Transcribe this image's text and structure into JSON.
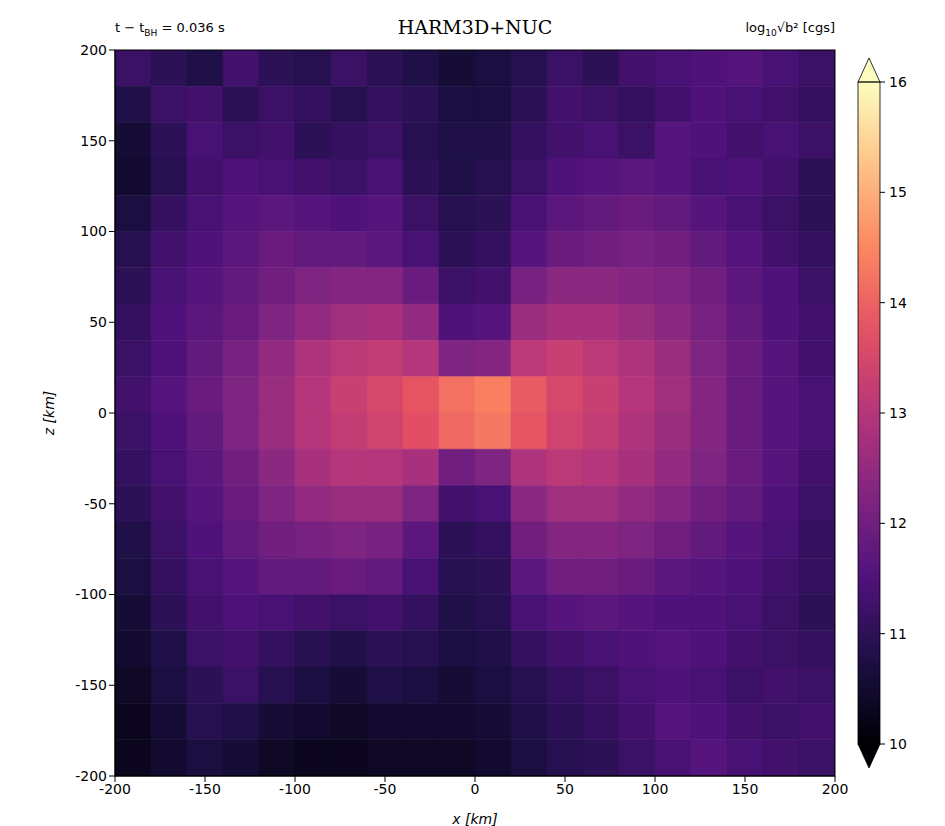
{
  "chart_data": {
    "type": "heatmap",
    "title": "HARM3D+NUC",
    "subtitle": [
      {
        "text": "t − t",
        "sub": false
      },
      {
        "text": "BH",
        "sub": true
      },
      {
        "text": " = 0.036 s",
        "sub": false
      }
    ],
    "colorbar_label": [
      {
        "text": "log",
        "sub": false
      },
      {
        "text": "10",
        "sub": true
      },
      {
        "text": "√b² [cgs]",
        "sub": false
      }
    ],
    "x_label": "x [km]",
    "y_label": "z [km]",
    "color": "magma",
    "xlim": [
      -200,
      200
    ],
    "ylim": [
      -200,
      200
    ],
    "xticks": [
      -200,
      -150,
      -100,
      -50,
      0,
      50,
      100,
      150,
      200
    ],
    "yticks": [
      -200,
      -150,
      -100,
      -50,
      0,
      50,
      100,
      150,
      200
    ],
    "colorbar_range": [
      10,
      16
    ],
    "colorbar_ticks": [
      10,
      11,
      12,
      13,
      14,
      15,
      16
    ],
    "x": [
      -190,
      -170,
      -150,
      -130,
      -110,
      -90,
      -70,
      -50,
      -30,
      -10,
      10,
      30,
      50,
      70,
      90,
      110,
      130,
      150,
      170,
      190
    ],
    "y": [
      190,
      170,
      150,
      130,
      110,
      90,
      70,
      50,
      30,
      10,
      -10,
      -30,
      -50,
      -70,
      -90,
      -110,
      -130,
      -150,
      -170,
      -190
    ],
    "cells": [
      [
        11.2,
        11.0,
        10.8,
        11.3,
        11.0,
        10.9,
        11.2,
        11.0,
        10.8,
        10.6,
        10.7,
        10.9,
        11.2,
        11.0,
        11.3,
        11.4,
        11.5,
        11.6,
        11.4,
        11.2
      ],
      [
        10.8,
        11.2,
        11.3,
        11.0,
        11.2,
        11.1,
        10.9,
        11.1,
        11.0,
        10.7,
        10.7,
        11.0,
        11.3,
        11.2,
        11.1,
        11.3,
        11.5,
        11.4,
        11.3,
        11.1
      ],
      [
        10.6,
        11.0,
        11.4,
        11.2,
        11.3,
        11.0,
        11.1,
        11.2,
        10.9,
        10.8,
        10.8,
        11.1,
        11.3,
        11.4,
        11.2,
        11.6,
        11.5,
        11.3,
        11.4,
        11.2
      ],
      [
        10.5,
        10.9,
        11.3,
        11.5,
        11.4,
        11.3,
        11.2,
        11.4,
        11.0,
        10.8,
        10.9,
        11.2,
        11.5,
        11.6,
        11.7,
        11.6,
        11.4,
        11.5,
        11.3,
        11.0
      ],
      [
        10.7,
        11.1,
        11.4,
        11.6,
        11.7,
        11.6,
        11.5,
        11.6,
        11.2,
        10.9,
        11.0,
        11.4,
        11.7,
        11.8,
        11.9,
        11.8,
        11.6,
        11.4,
        11.2,
        11.0
      ],
      [
        10.9,
        11.3,
        11.5,
        11.7,
        11.9,
        11.8,
        11.8,
        11.7,
        11.4,
        11.0,
        11.1,
        11.6,
        11.9,
        12.0,
        12.1,
        12.0,
        11.8,
        11.6,
        11.3,
        11.1
      ],
      [
        11.0,
        11.4,
        11.6,
        11.8,
        12.0,
        12.2,
        12.3,
        12.3,
        11.9,
        11.2,
        11.3,
        12.1,
        12.4,
        12.4,
        12.3,
        12.2,
        12.0,
        11.7,
        11.5,
        11.2
      ],
      [
        11.1,
        11.5,
        11.7,
        11.9,
        12.2,
        12.5,
        12.7,
        12.8,
        12.5,
        11.5,
        11.6,
        12.6,
        12.8,
        12.8,
        12.6,
        12.4,
        12.1,
        11.8,
        11.5,
        11.3
      ],
      [
        11.2,
        11.5,
        11.8,
        12.1,
        12.5,
        12.9,
        13.1,
        13.2,
        13.0,
        12.2,
        12.3,
        13.1,
        13.3,
        13.1,
        12.9,
        12.6,
        12.2,
        11.9,
        11.6,
        11.3
      ],
      [
        11.3,
        11.6,
        11.9,
        12.2,
        12.6,
        13.0,
        13.3,
        13.5,
        13.8,
        14.2,
        14.4,
        13.9,
        13.5,
        13.3,
        13.0,
        12.7,
        12.3,
        11.9,
        11.6,
        11.4
      ],
      [
        11.2,
        11.5,
        11.8,
        12.2,
        12.6,
        13.0,
        13.2,
        13.4,
        13.7,
        14.1,
        14.3,
        13.8,
        13.4,
        13.2,
        12.9,
        12.6,
        12.3,
        11.9,
        11.6,
        11.4
      ],
      [
        11.1,
        11.4,
        11.7,
        12.0,
        12.4,
        12.8,
        13.0,
        13.0,
        12.8,
        12.0,
        12.2,
        12.9,
        13.1,
        13.0,
        12.8,
        12.5,
        12.2,
        11.9,
        11.6,
        11.3
      ],
      [
        11.0,
        11.3,
        11.6,
        11.9,
        12.2,
        12.5,
        12.6,
        12.6,
        12.2,
        11.3,
        11.4,
        12.4,
        12.7,
        12.7,
        12.5,
        12.3,
        12.0,
        11.8,
        11.5,
        11.2
      ],
      [
        10.8,
        11.2,
        11.5,
        11.8,
        12.0,
        12.1,
        12.2,
        12.1,
        11.7,
        11.0,
        11.1,
        12.0,
        12.3,
        12.3,
        12.2,
        12.0,
        11.8,
        11.6,
        11.4,
        11.1
      ],
      [
        10.7,
        11.1,
        11.4,
        11.6,
        11.8,
        11.8,
        11.9,
        11.8,
        11.4,
        10.9,
        11.0,
        11.7,
        12.0,
        12.0,
        11.9,
        11.7,
        11.6,
        11.5,
        11.3,
        11.1
      ],
      [
        10.6,
        11.0,
        11.3,
        11.5,
        11.4,
        11.3,
        11.2,
        11.3,
        11.1,
        10.8,
        10.9,
        11.4,
        11.6,
        11.7,
        11.6,
        11.5,
        11.5,
        11.4,
        11.2,
        11.0
      ],
      [
        10.5,
        10.8,
        11.2,
        11.3,
        11.1,
        10.9,
        10.8,
        11.0,
        10.9,
        10.7,
        10.8,
        11.1,
        11.3,
        11.4,
        11.5,
        11.6,
        11.5,
        11.3,
        11.2,
        11.1
      ],
      [
        10.4,
        10.7,
        11.0,
        11.2,
        10.9,
        10.7,
        10.6,
        10.8,
        10.7,
        10.6,
        10.7,
        10.9,
        11.1,
        11.2,
        11.4,
        11.5,
        11.4,
        11.2,
        11.3,
        11.2
      ],
      [
        10.3,
        10.6,
        10.9,
        10.8,
        10.6,
        10.5,
        10.4,
        10.5,
        10.5,
        10.5,
        10.6,
        10.8,
        11.0,
        11.1,
        11.3,
        11.6,
        11.5,
        11.3,
        11.2,
        11.3
      ],
      [
        10.3,
        10.5,
        10.7,
        10.6,
        10.4,
        10.3,
        10.3,
        10.4,
        10.4,
        10.4,
        10.5,
        10.7,
        10.9,
        11.0,
        11.2,
        11.4,
        11.6,
        11.4,
        11.3,
        11.2
      ]
    ]
  }
}
